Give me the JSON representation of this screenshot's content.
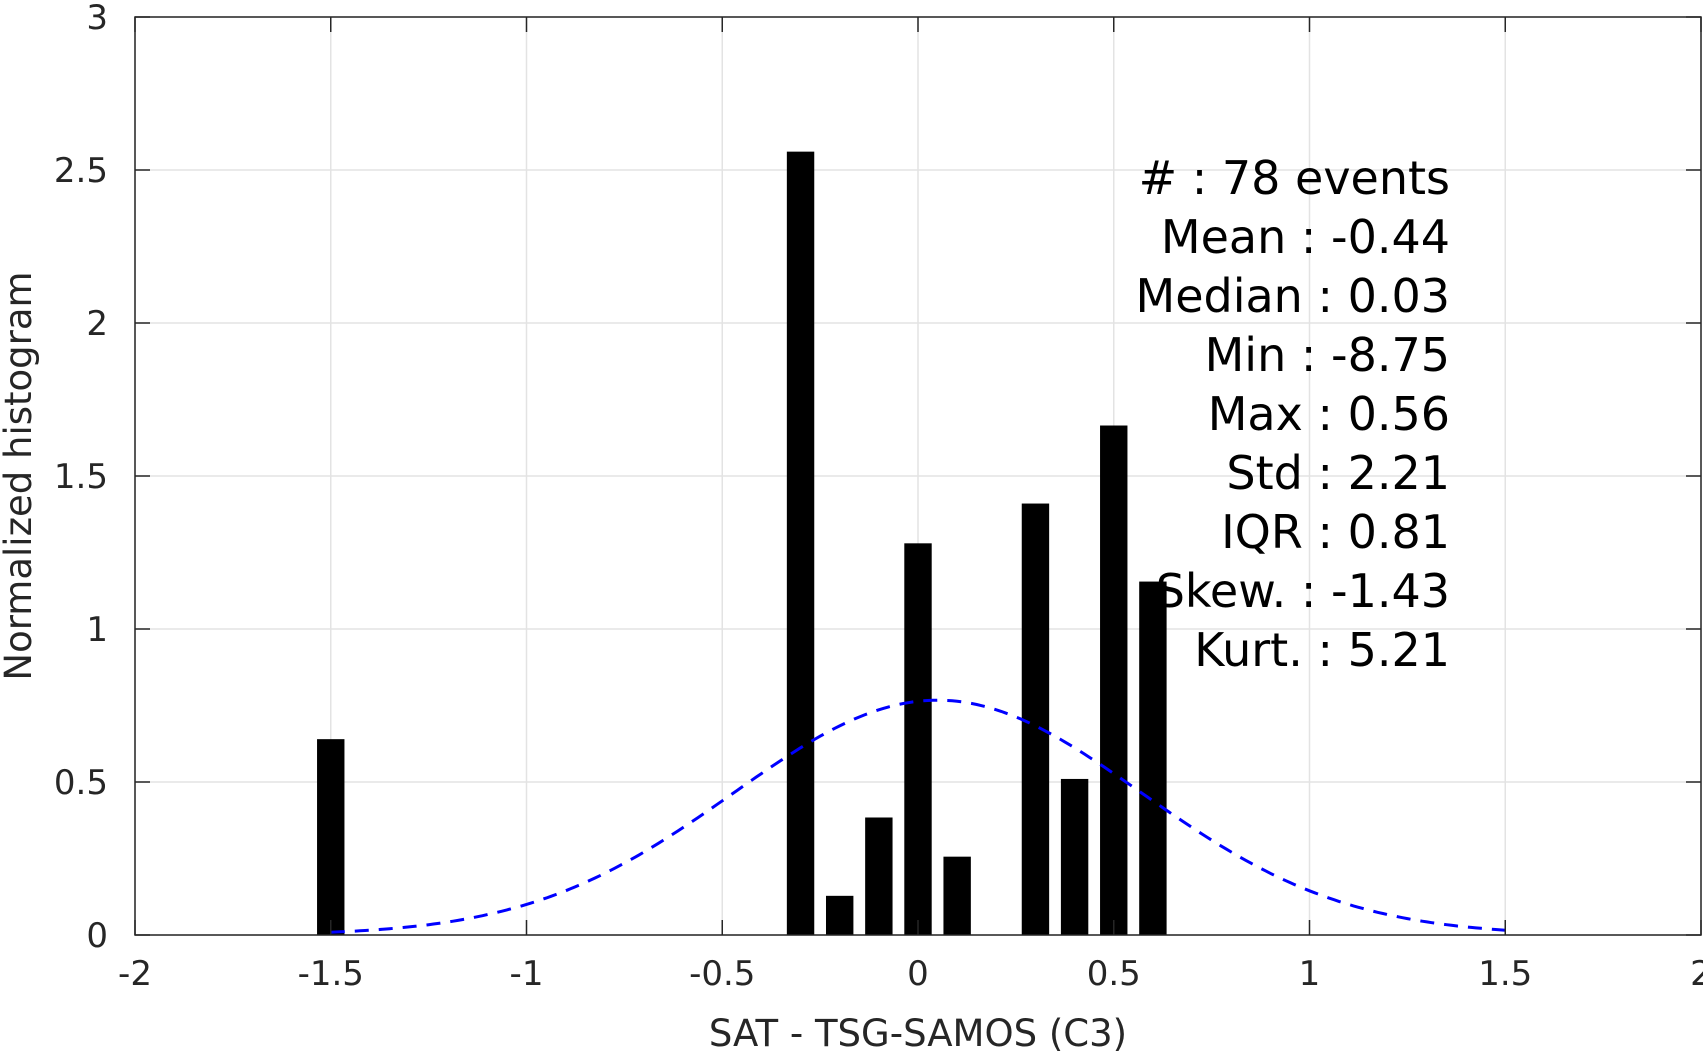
{
  "chart_data": {
    "type": "bar",
    "title": "",
    "xlabel": "SAT - TSG-SAMOS (C3)",
    "ylabel": "Normalized histogram",
    "xlim": [
      -2,
      2
    ],
    "ylim": [
      0,
      3
    ],
    "grid": true,
    "x_ticks": [
      "-2",
      "-1.5",
      "-1",
      "-0.5",
      "0",
      "0.5",
      "1",
      "1.5",
      "2"
    ],
    "y_ticks": [
      "0",
      "0.5",
      "1",
      "1.5",
      "2",
      "2.5",
      "3"
    ],
    "bar_width": 0.07,
    "bar_color": "#000000",
    "bars": [
      {
        "x": -1.5,
        "y": 0.64
      },
      {
        "x": -0.3,
        "y": 2.56
      },
      {
        "x": -0.2,
        "y": 0.128
      },
      {
        "x": -0.1,
        "y": 0.384
      },
      {
        "x": 0.0,
        "y": 1.28
      },
      {
        "x": 0.1,
        "y": 0.256
      },
      {
        "x": 0.3,
        "y": 1.41
      },
      {
        "x": 0.4,
        "y": 0.51
      },
      {
        "x": 0.5,
        "y": 1.665
      },
      {
        "x": 0.6,
        "y": 1.155
      }
    ],
    "curve": {
      "style": "dashed",
      "color": "#0000ff",
      "mean": 0.05,
      "std": 0.52,
      "x_range": [
        -1.5,
        1.5
      ]
    },
    "stats": [
      "#  : 78 events",
      "Mean : -0.44",
      "Median : 0.03",
      "Min : -8.75",
      "Max : 0.56",
      "Std : 2.21",
      "IQR : 0.81",
      "Skew. : -1.43",
      "Kurt. : 5.21"
    ]
  }
}
